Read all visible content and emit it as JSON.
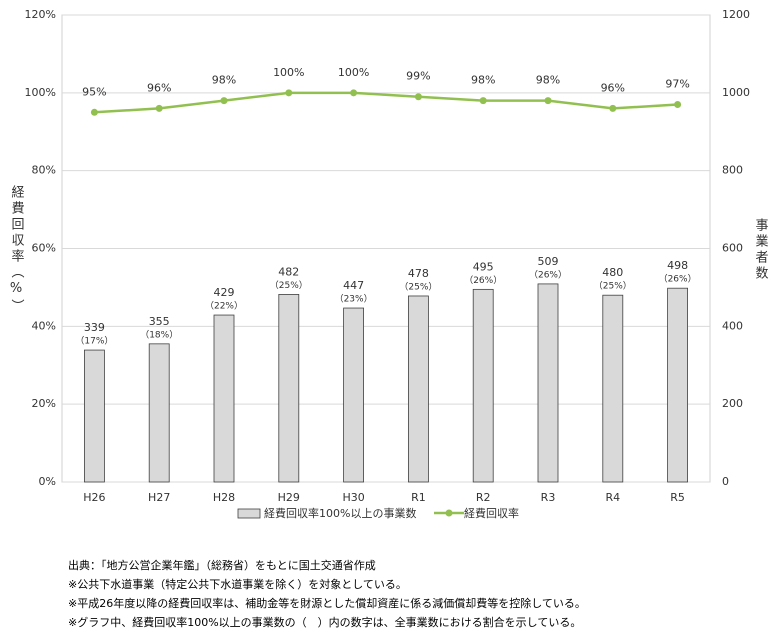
{
  "chart_data": {
    "type": "combo",
    "categories": [
      "H26",
      "H27",
      "H28",
      "H29",
      "H30",
      "R1",
      "R2",
      "R3",
      "R4",
      "R5"
    ],
    "y_label": "経費回収率（%）",
    "y2_label": "事業者数",
    "ylim": [
      0,
      120
    ],
    "yticks": [
      {
        "value": 0,
        "label": "0%"
      },
      {
        "value": 20,
        "label": "20%"
      },
      {
        "value": 40,
        "label": "40%"
      },
      {
        "value": 60,
        "label": "60%"
      },
      {
        "value": 80,
        "label": "80%"
      },
      {
        "value": 100,
        "label": "100%"
      },
      {
        "value": 120,
        "label": "120%"
      }
    ],
    "y2lim": [
      0,
      1200
    ],
    "y2ticks": [
      0,
      200,
      400,
      600,
      800,
      1000,
      1200
    ],
    "grid": true,
    "legend": "bottom",
    "series": [
      {
        "name": "経費回収率100%以上の事業数",
        "type": "bar",
        "axis": "y2",
        "color": "#d9d9d9",
        "values": [
          339,
          355,
          429,
          482,
          447,
          478,
          495,
          509,
          480,
          498
        ],
        "share_labels": [
          "（17%）",
          "（18%）",
          "（22%）",
          "（25%）",
          "（23%）",
          "（25%）",
          "（26%）",
          "（26%）",
          "（25%）",
          "（26%）"
        ]
      },
      {
        "name": "経費回収率",
        "type": "line",
        "color": "#92c050",
        "values": [
          95,
          96,
          98,
          100,
          100,
          99,
          98,
          98,
          96,
          97
        ],
        "value_labels": [
          "95%",
          "96%",
          "98%",
          "100%",
          "100%",
          "99%",
          "98%",
          "98%",
          "96%",
          "97%"
        ]
      }
    ],
    "notes": [
      "出典：「地方公営企業年鑑」（総務省）をもとに国土交通省作成",
      "※公共下水道事業（特定公共下水道事業を除く）を対象としている。",
      "※平成26年度以降の経費回収率は、補助金等を財源とした償却資産に係る減価償却費等を控除している。",
      "※グラフ中、経費回収率100%以上の事業数の（　）内の数字は、全事業数における割合を示している。"
    ]
  }
}
